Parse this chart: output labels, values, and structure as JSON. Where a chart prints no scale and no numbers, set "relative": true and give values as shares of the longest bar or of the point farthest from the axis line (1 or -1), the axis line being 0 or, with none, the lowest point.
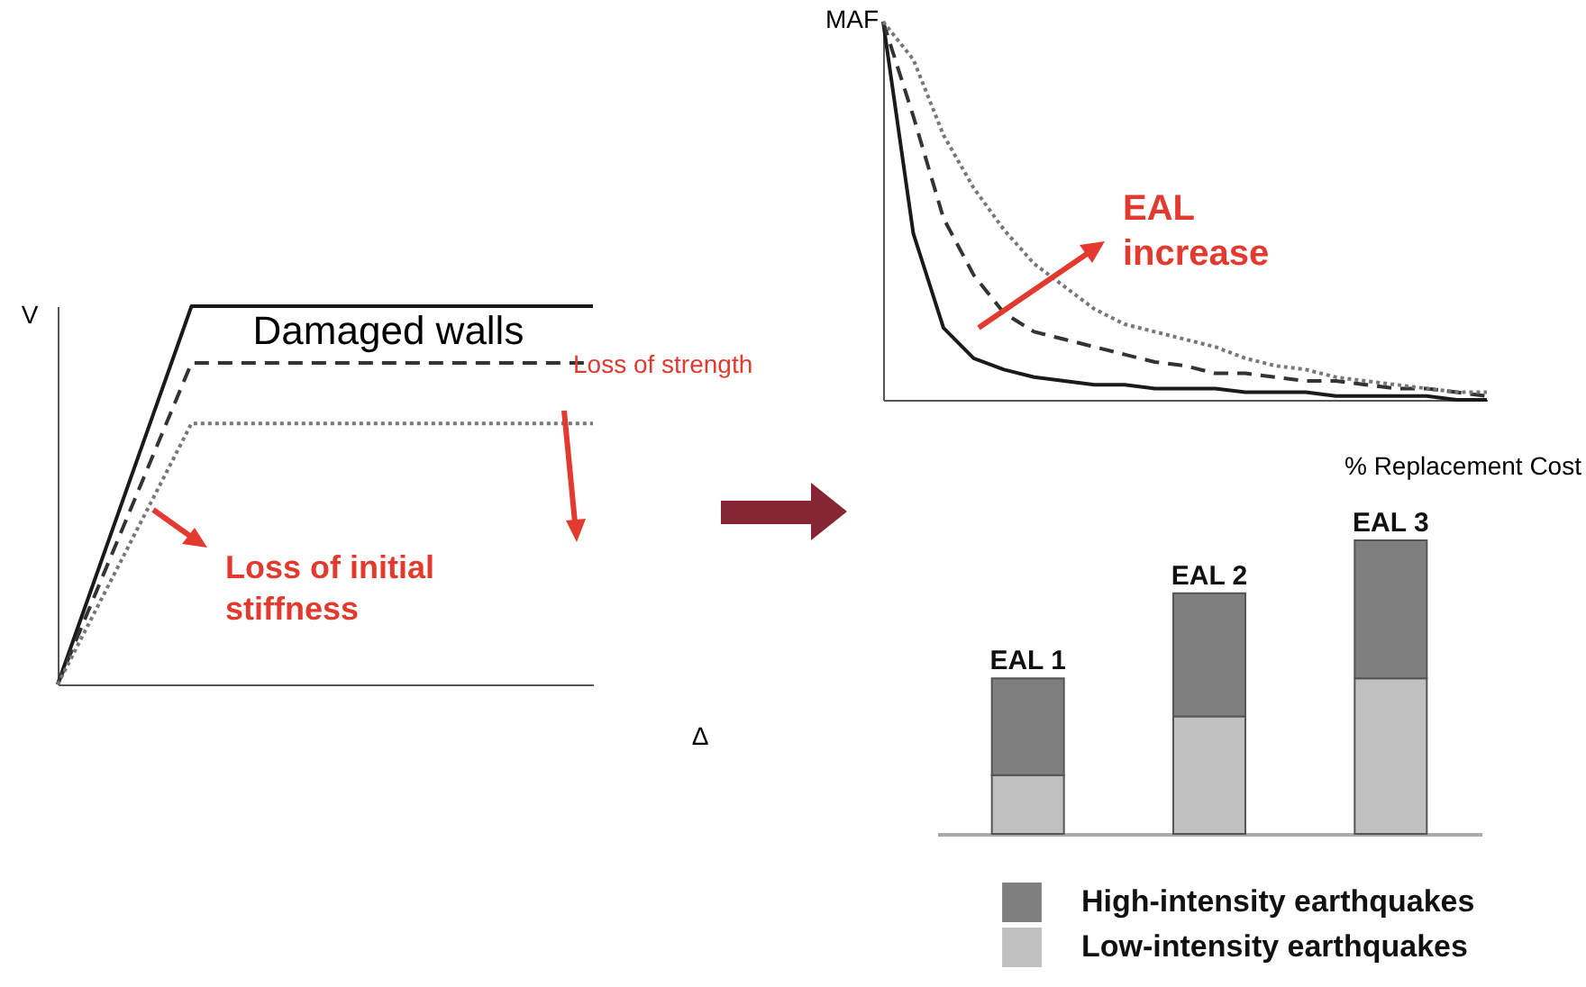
{
  "chart_data": [
    {
      "type": "line",
      "title": "Damaged walls",
      "xlabel": "Δ",
      "ylabel": "V",
      "relative": true,
      "categories": [
        null,
        null,
        null,
        null,
        null
      ],
      "series": [
        {
          "color": "#1a1a1a",
          "line_style": "solid",
          "values": [
            0,
            1,
            1,
            1,
            1
          ]
        },
        {
          "color": "#333333",
          "line_style": "dashed",
          "values": [
            0,
            0.85,
            0.85,
            0.85,
            0.85
          ]
        },
        {
          "color": "#777777",
          "line_style": "dotted",
          "values": [
            0,
            0.69,
            0.69,
            0.69,
            0.69
          ]
        }
      ],
      "annotations": [
        "Loss of strength",
        "Loss of initial stiffness"
      ]
    },
    {
      "type": "line",
      "xlabel": "% Replacement Cost",
      "ylabel": "MAF",
      "relative": true,
      "categories": [
        null,
        null,
        null,
        null,
        null,
        null,
        null,
        null,
        null,
        null,
        null,
        null,
        null,
        null,
        null,
        null,
        null,
        null,
        null,
        null,
        null
      ],
      "series": [
        {
          "color": "#1a1a1a",
          "line_style": "solid",
          "values": [
            1,
            0.44,
            0.19,
            0.11,
            0.08,
            0.06,
            0.05,
            0.04,
            0.04,
            0.03,
            0.03,
            0.03,
            0.02,
            0.02,
            0.02,
            0.01,
            0.01,
            0.01,
            0.01,
            0,
            0
          ]
        },
        {
          "color": "#333333",
          "line_style": "dashed",
          "values": [
            1,
            0.75,
            0.48,
            0.33,
            0.23,
            0.18,
            0.16,
            0.14,
            0.12,
            0.1,
            0.09,
            0.07,
            0.07,
            0.06,
            0.05,
            0.05,
            0.04,
            0.03,
            0.03,
            0.02,
            0.01
          ]
        },
        {
          "color": "#777777",
          "line_style": "dotted",
          "values": [
            1,
            0.9,
            0.7,
            0.56,
            0.45,
            0.36,
            0.3,
            0.24,
            0.2,
            0.18,
            0.16,
            0.14,
            0.11,
            0.09,
            0.08,
            0.06,
            0.05,
            0.04,
            0.03,
            0.02,
            0.02
          ]
        }
      ],
      "annotations": [
        "EAL increase"
      ]
    },
    {
      "type": "bar",
      "stacked": true,
      "relative": true,
      "legend": "bottom right",
      "categories": [
        "EAL 1",
        "EAL 2",
        "EAL 3"
      ],
      "series": [
        {
          "name": "Low-intensity earthquakes",
          "color": "#c0c0c0",
          "values": [
            0.2,
            0.4,
            0.53
          ]
        },
        {
          "name": "High-intensity earthquakes",
          "color": "#7f7f7f",
          "values": [
            0.33,
            0.42,
            0.47
          ]
        }
      ]
    }
  ]
}
